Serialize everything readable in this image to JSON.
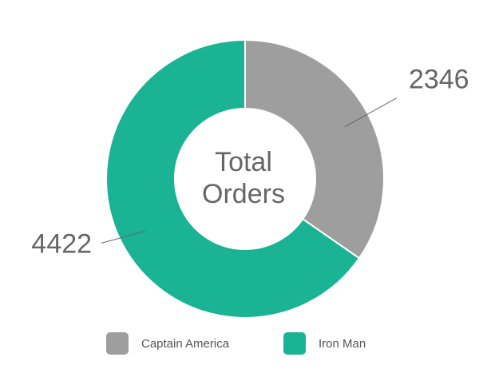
{
  "chart_data": {
    "type": "pie",
    "variant": "donut",
    "center_label": [
      "Total",
      "Orders"
    ],
    "slices": [
      {
        "label": "Captain America",
        "value": 2346,
        "color": "#9e9e9e"
      },
      {
        "label": "Iron Man",
        "value": 4422,
        "color": "#1ab394"
      }
    ],
    "legend_position": "bottom"
  }
}
